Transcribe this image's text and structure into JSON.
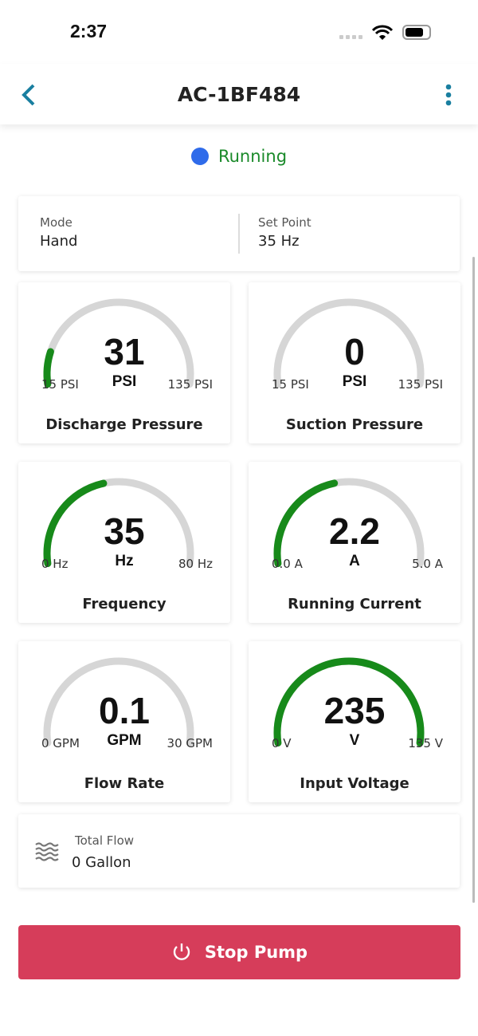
{
  "status_bar": {
    "time": "2:37"
  },
  "header": {
    "title": "AC-1BF484",
    "back_icon": "chevron-left-icon",
    "menu_icon": "more-vertical-icon"
  },
  "status": {
    "label": "Running",
    "dot_color": "#2f6bea",
    "text_color": "#1a8a2a"
  },
  "info": {
    "mode_label": "Mode",
    "mode_value": "Hand",
    "setpoint_label": "Set Point",
    "setpoint_value": "35 Hz"
  },
  "gauges": [
    {
      "name": "Discharge Pressure",
      "value": "31",
      "unit": "PSI",
      "min_label": "15 PSI",
      "max_label": "135 PSI",
      "min": 15,
      "max": 135,
      "reading": 31
    },
    {
      "name": "Suction Pressure",
      "value": "0",
      "unit": "PSI",
      "min_label": "15 PSI",
      "max_label": "135 PSI",
      "min": 15,
      "max": 135,
      "reading": 0
    },
    {
      "name": "Frequency",
      "value": "35",
      "unit": "Hz",
      "min_label": "0 Hz",
      "max_label": "80 Hz",
      "min": 0,
      "max": 80,
      "reading": 35
    },
    {
      "name": "Running Current",
      "value": "2.2",
      "unit": "A",
      "min_label": "0.0 A",
      "max_label": "5.0 A",
      "min": 0,
      "max": 5,
      "reading": 2.2
    },
    {
      "name": "Flow Rate",
      "value": "0.1",
      "unit": "GPM",
      "min_label": "0 GPM",
      "max_label": "30 GPM",
      "min": 0,
      "max": 30,
      "reading": 0.1
    },
    {
      "name": "Input Voltage",
      "value": "235",
      "unit": "V",
      "min_label": "0 V",
      "max_label": "135 V",
      "min": 0,
      "max": 135,
      "reading": 235
    }
  ],
  "total_flow": {
    "label": "Total Flow",
    "value": "0 Gallon",
    "icon": "water-waves-icon"
  },
  "stop_button": {
    "label": "Stop Pump",
    "icon": "power-icon",
    "color": "#d63d5a"
  },
  "colors": {
    "gauge_fill": "#178a1a",
    "gauge_track": "#d6d6d6",
    "accent": "#1a7fa0"
  }
}
